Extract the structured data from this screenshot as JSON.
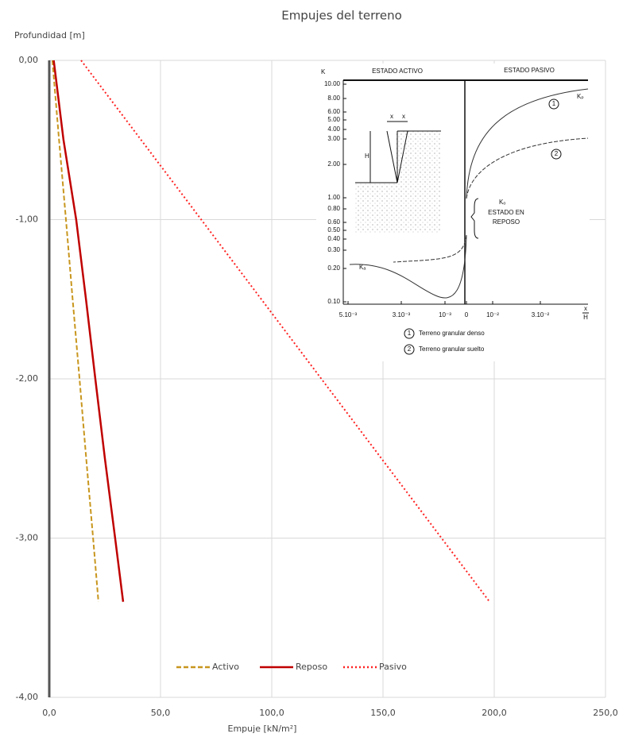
{
  "chart_data": {
    "type": "line",
    "title": "Empujes del terreno",
    "y_label": "Profundidad  [m]",
    "x_label": "Empuje [kN/m²]",
    "xlim": [
      0,
      250
    ],
    "ylim": [
      -4,
      0
    ],
    "grid": true,
    "legend": "bottom",
    "xticks": [
      {
        "value": 0,
        "label": "0,0"
      },
      {
        "value": 50,
        "label": "50,0"
      },
      {
        "value": 100,
        "label": "100,0"
      },
      {
        "value": 150,
        "label": "150,0"
      },
      {
        "value": 200,
        "label": "200,0"
      },
      {
        "value": 250,
        "label": "250,0"
      }
    ],
    "yticks": [
      {
        "value": 0,
        "label": "0,00"
      },
      {
        "value": -1,
        "label": "-1,00"
      },
      {
        "value": -2,
        "label": "-2,00"
      },
      {
        "value": -3,
        "label": "-3,00"
      },
      {
        "value": -4,
        "label": "-4,00"
      }
    ],
    "series": [
      {
        "name": "Activo",
        "color": "#c8961e",
        "dash": "6,3",
        "x": [
          1.4,
          4.4,
          7.5,
          10.5,
          13.6,
          16.6,
          19.7,
          22.1
        ],
        "values": [
          0,
          -0.5,
          -1,
          -1.5,
          -2,
          -2.5,
          -3,
          -3.4
        ]
      },
      {
        "name": "Reposo",
        "color": "#c00000",
        "dash": "none",
        "x": [
          2,
          6.4,
          12.1,
          16.5,
          20.7,
          25,
          29.6,
          33.2
        ],
        "values": [
          0,
          -0.5,
          -1,
          -1.5,
          -2,
          -2.5,
          -3,
          -3.4
        ]
      },
      {
        "name": "Pasivo",
        "color": "#ff2020",
        "dash": "2,3",
        "x": [
          14.3,
          41.3,
          68.3,
          95.3,
          122.3,
          149.3,
          176.3,
          197.9
        ],
        "values": [
          0,
          -0.5,
          -1,
          -1.5,
          -2,
          -2.5,
          -3,
          -3.4
        ]
      }
    ]
  },
  "inset": {
    "k": "K",
    "active": "ESTADO ACTIVO",
    "passive": "ESTADO PASIVO",
    "yticks": [
      "10.00",
      "8.00",
      "6.00",
      "5.00",
      "4.00",
      "3.00",
      "2.00",
      "1.00",
      "0.80",
      "0.60",
      "0.50",
      "0.40",
      "0.30",
      "0.20",
      "0.10"
    ],
    "xticks": [
      "5.10⁻³",
      "3.10⁻³",
      "10⁻³",
      "0",
      "10⁻²",
      "3.10⁻²"
    ],
    "x_over": "x",
    "x_under": "H",
    "h": "H",
    "x1": "x",
    "x2": "x",
    "kp": "Kₚ",
    "ka": "Kₐ",
    "ko": "Kₒ",
    "rest1": "ESTADO EN",
    "rest2": "REPOSO",
    "c1": "1",
    "c2": "2",
    "l1n": "1",
    "l2n": "2",
    "legend1": "Terreno granular denso",
    "legend2": "Terreno granular suelto"
  }
}
